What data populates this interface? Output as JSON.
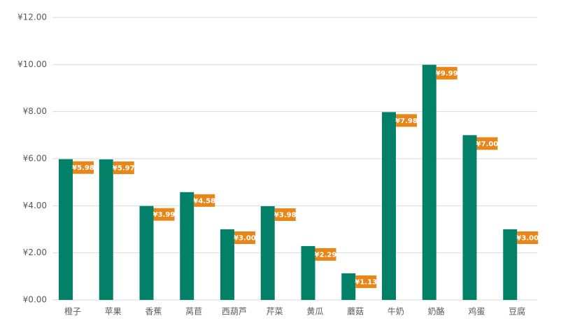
{
  "chart_data": {
    "type": "bar",
    "categories": [
      "橙子",
      "苹果",
      "香蕉",
      "莴苣",
      "西葫芦",
      "芹菜",
      "黄瓜",
      "蘑菇",
      "牛奶",
      "奶酪",
      "鸡蛋",
      "豆腐"
    ],
    "values": [
      5.98,
      5.97,
      3.99,
      4.58,
      3.0,
      3.98,
      2.29,
      1.13,
      7.98,
      9.99,
      7.0,
      3.0
    ],
    "value_labels": [
      "¥5.98",
      "¥5.97",
      "¥3.99",
      "¥4.58",
      "¥3.00",
      "¥3.98",
      "¥2.29",
      "¥1.13",
      "¥7.98",
      "¥9.99",
      "¥7.00",
      "¥3.00"
    ],
    "color": "#038068",
    "label_color": "#e8861a",
    "ylim": [
      0,
      12
    ],
    "yticks": [
      {
        "value": 0,
        "label": "¥0.00"
      },
      {
        "value": 2,
        "label": "¥2.00"
      },
      {
        "value": 4,
        "label": "¥4.00"
      },
      {
        "value": 6,
        "label": "¥6.00"
      },
      {
        "value": 8,
        "label": "¥8.00"
      },
      {
        "value": 10,
        "label": "¥10.00"
      },
      {
        "value": 12,
        "label": "¥12.00"
      }
    ],
    "grid": true
  }
}
